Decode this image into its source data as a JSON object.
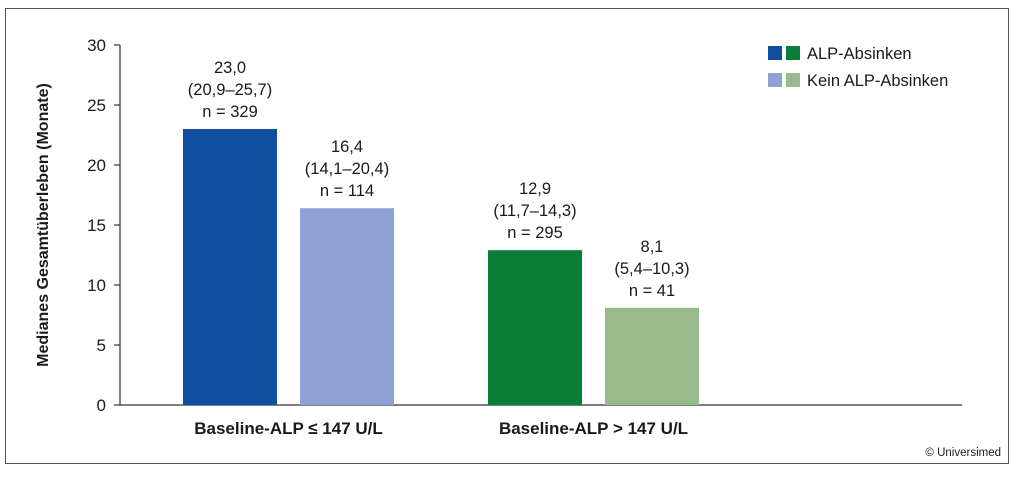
{
  "chart_data": {
    "type": "bar",
    "title": "",
    "ylabel": "Medianes Gesamtüberleben (Monate)",
    "xlabel": "",
    "ylim": [
      0,
      30
    ],
    "yticks": [
      0,
      5,
      10,
      15,
      20,
      25,
      30
    ],
    "grid": false,
    "legend_position": "top-right",
    "groups": [
      {
        "category": "Baseline-ALP ≤ 147 U/L",
        "bars": [
          {
            "series": 0,
            "value": 23.0,
            "label_lines": [
              "23,0",
              "(20,9–25,7)",
              "n = 329"
            ],
            "color": "#0e4fa0"
          },
          {
            "series": 1,
            "value": 16.4,
            "label_lines": [
              "16,4",
              "(14,1–20,4)",
              "n = 114"
            ],
            "color": "#8fa2d4"
          }
        ]
      },
      {
        "category": "Baseline-ALP > 147 U/L",
        "bars": [
          {
            "series": 0,
            "value": 12.9,
            "label_lines": [
              "12,9",
              "(11,7–14,3)",
              "n = 295"
            ],
            "color": "#0a7d36"
          },
          {
            "series": 1,
            "value": 8.1,
            "label_lines": [
              "8,1",
              "(5,4–10,3)",
              "n = 41"
            ],
            "color": "#98bb8c"
          }
        ]
      }
    ],
    "series": [
      {
        "name": "ALP-Absinken",
        "swatch_colors": [
          "#0e4fa0",
          "#0a7d36"
        ]
      },
      {
        "name": "Kein ALP-Absinken",
        "swatch_colors": [
          "#8fa2d4",
          "#98bb8c"
        ]
      }
    ]
  },
  "copyright": "© Universimed"
}
